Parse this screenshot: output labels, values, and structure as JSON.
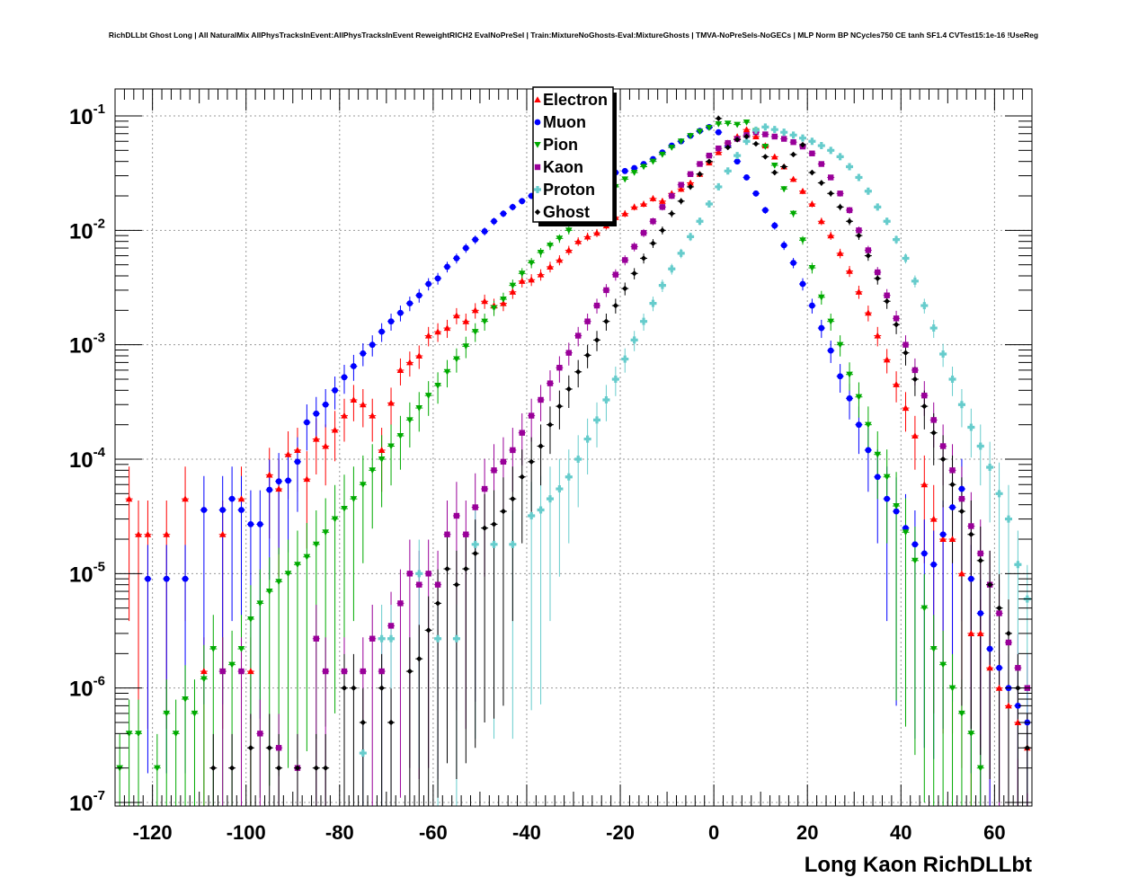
{
  "chart_data": {
    "type": "scatter",
    "title": "RichDLLbt Ghost Long | All NaturalMix AllPhysTracksInEvent:AllPhysTracksInEvent ReweightRICH2 EvalNoPreSel | Train:MixtureNoGhosts-Eval:MixtureGhosts | TMVA-NoPreSels-NoGECs | MLP Norm BP NCycles750 CE tanh SF1.4 CVTest15:1e-16 !UseReg",
    "xlabel": "Long Kaon RichDLLbt",
    "ylabel": "",
    "xlim": [
      -128,
      68
    ],
    "ylim": [
      1e-07,
      0.18
    ],
    "yscale": "log",
    "grid": true,
    "legend_position": "top-center",
    "x_ticks": [
      "-120",
      "-100",
      "-80",
      "-60",
      "-40",
      "-20",
      "0",
      "20",
      "40",
      "60"
    ],
    "y_ticks": [
      {
        "base": "10",
        "exp": "-7"
      },
      {
        "base": "10",
        "exp": "-6"
      },
      {
        "base": "10",
        "exp": "-5"
      },
      {
        "base": "10",
        "exp": "-4"
      },
      {
        "base": "10",
        "exp": "-3"
      },
      {
        "base": "10",
        "exp": "-2"
      },
      {
        "base": "10",
        "exp": "-1"
      }
    ],
    "series": [
      {
        "name": "Electron",
        "color": "#ff0000",
        "marker": "triangle-up",
        "x": [
          -125,
          -123,
          -121,
          -117,
          -113,
          -109,
          -105,
          -101,
          -99,
          -95,
          -93,
          -91,
          -89,
          -87,
          -85,
          -83,
          -81,
          -79,
          -77,
          -75,
          -73,
          -71,
          -69,
          -67,
          -65,
          -63,
          -61,
          -59,
          -57,
          -55,
          -53,
          -51,
          -49,
          -47,
          -45,
          -43,
          -41,
          -39,
          -37,
          -35,
          -33,
          -31,
          -29,
          -27,
          -25,
          -23,
          -21,
          -19,
          -17,
          -15,
          -13,
          -11,
          -9,
          -7,
          -5,
          -3,
          -1,
          1,
          3,
          5,
          7,
          9,
          11,
          13,
          15,
          17,
          19,
          21,
          23,
          25,
          27,
          29,
          31,
          33,
          35,
          37,
          39,
          41,
          43,
          45,
          47,
          49,
          51,
          53,
          55,
          57,
          59,
          61,
          63,
          65,
          67
        ],
        "y": [
          4.5e-05,
          2.2e-05,
          2.2e-05,
          2.2e-05,
          4.5e-05,
          1.4e-06,
          2.2e-05,
          4.5e-05,
          1.4e-06,
          7.3e-05,
          5.5e-05,
          0.00011,
          0.00012,
          6.7e-05,
          0.00015,
          0.00013,
          0.00018,
          0.00024,
          0.00033,
          0.0003,
          0.00024,
          0.00012,
          0.00031,
          0.0006,
          0.0007,
          0.0008,
          0.0012,
          0.0013,
          0.0014,
          0.0018,
          0.0016,
          0.002,
          0.0024,
          0.0022,
          0.0023,
          0.0029,
          0.0036,
          0.0037,
          0.0041,
          0.0048,
          0.0055,
          0.0067,
          0.008,
          0.0088,
          0.0095,
          0.011,
          0.013,
          0.014,
          0.016,
          0.017,
          0.019,
          0.018,
          0.021,
          0.023,
          0.026,
          0.031,
          0.039,
          0.048,
          0.058,
          0.066,
          0.076,
          0.066,
          0.055,
          0.044,
          0.036,
          0.028,
          0.022,
          0.017,
          0.012,
          0.009,
          0.0063,
          0.0044,
          0.0029,
          0.0019,
          0.0012,
          0.00074,
          0.00045,
          0.00028,
          0.00016,
          6e-05,
          3e-05,
          2e-05,
          2e-05,
          1e-05,
          3e-06,
          3e-06,
          1.5e-06,
          1e-06,
          7e-07,
          5e-07,
          3e-07
        ]
      },
      {
        "name": "Muon",
        "color": "#0000ff",
        "marker": "circle",
        "x": [
          -121,
          -117,
          -113,
          -109,
          -105,
          -103,
          -101,
          -99,
          -97,
          -95,
          -93,
          -91,
          -89,
          -87,
          -85,
          -83,
          -81,
          -79,
          -77,
          -75,
          -73,
          -71,
          -69,
          -67,
          -65,
          -63,
          -61,
          -59,
          -57,
          -55,
          -53,
          -51,
          -49,
          -47,
          -45,
          -43,
          -41,
          -39,
          -37,
          -35,
          -33,
          -31,
          -29,
          -27,
          -25,
          -23,
          -21,
          -19,
          -17,
          -15,
          -13,
          -11,
          -9,
          -7,
          -5,
          -3,
          -1,
          1,
          3,
          5,
          7,
          9,
          11,
          13,
          15,
          17,
          19,
          21,
          23,
          25,
          27,
          29,
          31,
          33,
          35,
          37,
          39,
          41,
          43,
          45,
          47,
          49,
          51,
          53,
          55,
          57,
          59,
          61,
          63,
          65,
          67
        ],
        "y": [
          9e-06,
          9e-06,
          9e-06,
          3.6e-05,
          3.6e-05,
          4.5e-05,
          3.6e-05,
          2.7e-05,
          2.7e-05,
          5.4e-05,
          6.4e-05,
          6.5e-05,
          9.5e-05,
          0.00021,
          0.00025,
          0.0003,
          0.0004,
          0.00052,
          0.00065,
          0.00084,
          0.001,
          0.0013,
          0.0016,
          0.0019,
          0.0023,
          0.0027,
          0.0034,
          0.0038,
          0.0048,
          0.0057,
          0.007,
          0.0083,
          0.0098,
          0.012,
          0.014,
          0.016,
          0.018,
          0.02,
          0.022,
          0.024,
          0.026,
          0.027,
          0.028,
          0.029,
          0.03,
          0.031,
          0.032,
          0.033,
          0.035,
          0.038,
          0.042,
          0.048,
          0.055,
          0.06,
          0.067,
          0.074,
          0.08,
          0.072,
          0.055,
          0.04,
          0.029,
          0.021,
          0.015,
          0.011,
          0.0074,
          0.0052,
          0.0034,
          0.0022,
          0.0014,
          0.00089,
          0.00053,
          0.00034,
          0.0002,
          0.00012,
          7e-05,
          4.5e-05,
          3.5e-05,
          2.5e-05,
          1.8e-05,
          1.5e-05,
          1.2e-05,
          2.2e-05,
          3.8e-05,
          5.5e-05,
          9e-06,
          4.5e-06,
          2.2e-06,
          1.5e-06,
          1e-06,
          7e-07,
          5e-07
        ]
      },
      {
        "name": "Pion",
        "color": "#00aa00",
        "marker": "triangle-down",
        "x": [
          -127,
          -125,
          -123,
          -119,
          -117,
          -115,
          -113,
          -111,
          -109,
          -107,
          -105,
          -103,
          -101,
          -99,
          -97,
          -95,
          -93,
          -91,
          -89,
          -87,
          -85,
          -83,
          -81,
          -79,
          -77,
          -75,
          -73,
          -71,
          -69,
          -67,
          -65,
          -63,
          -61,
          -59,
          -57,
          -55,
          -53,
          -51,
          -49,
          -47,
          -45,
          -43,
          -41,
          -39,
          -37,
          -35,
          -33,
          -31,
          -29,
          -27,
          -25,
          -23,
          -21,
          -19,
          -17,
          -15,
          -13,
          -11,
          -9,
          -7,
          -5,
          -3,
          -1,
          1,
          3,
          5,
          7,
          9,
          11,
          13,
          15,
          17,
          19,
          21,
          23,
          25,
          27,
          29,
          31,
          33,
          35,
          37,
          39,
          41,
          43,
          45,
          47,
          49,
          51,
          53,
          55,
          57
        ],
        "y": [
          2e-07,
          4e-07,
          4e-07,
          2e-07,
          6e-07,
          4e-07,
          8e-07,
          6e-07,
          1.2e-06,
          2.2e-06,
          1.4e-06,
          1.6e-06,
          2.2e-06,
          4e-06,
          5.5e-06,
          7e-06,
          8.5e-06,
          1e-05,
          1.2e-05,
          1.4e-05,
          1.8e-05,
          2.3e-05,
          3e-05,
          3.7e-05,
          4.5e-05,
          6e-05,
          8e-05,
          0.0001,
          0.00013,
          0.00016,
          0.00022,
          0.00028,
          0.00036,
          0.00044,
          0.00058,
          0.00075,
          0.00097,
          0.0013,
          0.0016,
          0.0021,
          0.0025,
          0.0033,
          0.0042,
          0.0052,
          0.0064,
          0.0074,
          0.0085,
          0.01,
          0.012,
          0.014,
          0.017,
          0.02,
          0.024,
          0.028,
          0.032,
          0.036,
          0.04,
          0.046,
          0.053,
          0.06,
          0.067,
          0.073,
          0.079,
          0.085,
          0.086,
          0.084,
          0.088,
          0.074,
          0.054,
          0.037,
          0.023,
          0.014,
          0.0082,
          0.0047,
          0.0026,
          0.0016,
          0.001,
          0.00055,
          0.00035,
          0.0002,
          0.00011,
          7e-05,
          3.9e-05,
          2.3e-05,
          1.3e-05,
          5e-06,
          2.2e-06,
          1.6e-06,
          1e-06,
          6e-07,
          4e-07,
          2e-07
        ]
      },
      {
        "name": "Kaon",
        "color": "#990099",
        "marker": "square",
        "x": [
          -105,
          -101,
          -97,
          -93,
          -89,
          -85,
          -83,
          -79,
          -75,
          -73,
          -71,
          -69,
          -67,
          -65,
          -63,
          -61,
          -59,
          -57,
          -55,
          -53,
          -51,
          -49,
          -47,
          -45,
          -43,
          -41,
          -39,
          -37,
          -35,
          -33,
          -31,
          -29,
          -27,
          -25,
          -23,
          -21,
          -19,
          -17,
          -15,
          -13,
          -11,
          -9,
          -7,
          -5,
          -3,
          -1,
          1,
          3,
          5,
          7,
          9,
          11,
          13,
          15,
          17,
          19,
          21,
          23,
          25,
          27,
          29,
          31,
          33,
          35,
          37,
          39,
          41,
          43,
          45,
          47,
          49,
          51,
          53,
          55,
          57,
          59,
          61,
          63,
          65,
          67
        ],
        "y": [
          1.4e-06,
          1.4e-06,
          4e-07,
          3e-07,
          2e-07,
          2.7e-06,
          1.4e-06,
          1.4e-06,
          1.4e-06,
          2.7e-06,
          1.4e-06,
          3.5e-06,
          5.5e-06,
          1e-05,
          8e-06,
          1e-05,
          8e-06,
          2.2e-05,
          3.2e-05,
          2.2e-05,
          3.8e-05,
          5.5e-05,
          8e-05,
          9.5e-05,
          0.00012,
          0.00017,
          0.00024,
          0.00033,
          0.00046,
          0.00063,
          0.00085,
          0.0012,
          0.0016,
          0.0022,
          0.003,
          0.0041,
          0.0055,
          0.0072,
          0.0095,
          0.012,
          0.016,
          0.02,
          0.025,
          0.031,
          0.038,
          0.045,
          0.052,
          0.058,
          0.063,
          0.068,
          0.072,
          0.069,
          0.066,
          0.063,
          0.059,
          0.054,
          0.047,
          0.038,
          0.029,
          0.021,
          0.015,
          0.01,
          0.0067,
          0.0043,
          0.0027,
          0.0017,
          0.001,
          0.0006,
          0.00036,
          0.00022,
          0.00013,
          8e-05,
          4.5e-05,
          2.6e-05,
          1.5e-05,
          8e-06,
          4.5e-06,
          2.5e-06,
          1.5e-06,
          1e-06
        ]
      },
      {
        "name": "Proton",
        "color": "#66cccc",
        "marker": "cross",
        "x": [
          -75,
          -71,
          -69,
          -63,
          -59,
          -55,
          -51,
          -47,
          -43,
          -39,
          -37,
          -35,
          -33,
          -31,
          -29,
          -27,
          -25,
          -23,
          -21,
          -19,
          -17,
          -15,
          -13,
          -11,
          -9,
          -7,
          -5,
          -3,
          -1,
          1,
          3,
          5,
          7,
          9,
          11,
          13,
          15,
          17,
          19,
          21,
          23,
          25,
          27,
          29,
          31,
          33,
          35,
          37,
          39,
          41,
          43,
          45,
          47,
          49,
          51,
          53,
          55,
          57,
          59,
          61,
          63,
          65,
          67
        ],
        "y": [
          2.7e-07,
          2.7e-06,
          2.7e-06,
          1e-05,
          2.7e-06,
          2.7e-06,
          1.8e-05,
          1.8e-05,
          1.8e-05,
          3.2e-05,
          3.6e-05,
          4.5e-05,
          5.5e-05,
          7e-05,
          0.0001,
          0.00015,
          0.00022,
          0.00033,
          0.0005,
          0.00075,
          0.0011,
          0.0016,
          0.0023,
          0.0033,
          0.0046,
          0.0063,
          0.0088,
          0.012,
          0.017,
          0.024,
          0.033,
          0.045,
          0.06,
          0.075,
          0.08,
          0.076,
          0.072,
          0.068,
          0.064,
          0.06,
          0.055,
          0.05,
          0.044,
          0.036,
          0.029,
          0.022,
          0.016,
          0.012,
          0.0083,
          0.0057,
          0.0036,
          0.0022,
          0.0014,
          0.00083,
          0.0005,
          0.0003,
          0.00019,
          0.00013,
          8.5e-05,
          5e-05,
          3e-05,
          1.2e-05,
          6e-06
        ]
      },
      {
        "name": "Ghost",
        "color": "#000000",
        "marker": "star",
        "x": [
          -107,
          -103,
          -99,
          -95,
          -93,
          -89,
          -85,
          -83,
          -79,
          -77,
          -75,
          -71,
          -69,
          -65,
          -63,
          -61,
          -59,
          -57,
          -55,
          -53,
          -51,
          -49,
          -47,
          -45,
          -43,
          -41,
          -39,
          -37,
          -35,
          -33,
          -31,
          -29,
          -27,
          -25,
          -23,
          -21,
          -19,
          -17,
          -15,
          -13,
          -11,
          -9,
          -7,
          -5,
          -3,
          -1,
          1,
          3,
          5,
          7,
          9,
          11,
          13,
          15,
          17,
          19,
          21,
          23,
          25,
          27,
          29,
          31,
          33,
          35,
          37,
          39,
          41,
          43,
          45,
          47,
          49,
          51,
          53,
          55,
          57,
          59,
          61,
          63,
          65,
          67
        ],
        "y": [
          2e-07,
          2e-07,
          3e-07,
          3e-07,
          2e-07,
          2e-07,
          2e-07,
          2e-07,
          1e-06,
          1e-06,
          5e-07,
          1e-06,
          5e-07,
          1.4e-06,
          1.8e-06,
          3.2e-06,
          5.5e-06,
          1.1e-05,
          8e-06,
          1.1e-05,
          1.5e-05,
          2.5e-05,
          2.7e-05,
          3.5e-05,
          4.5e-05,
          7e-05,
          9.5e-05,
          0.00013,
          0.0002,
          0.00029,
          0.00041,
          0.00058,
          0.00081,
          0.0011,
          0.0016,
          0.0022,
          0.0031,
          0.0042,
          0.0057,
          0.0077,
          0.01,
          0.014,
          0.018,
          0.024,
          0.031,
          0.04,
          0.095,
          0.053,
          0.062,
          0.066,
          0.057,
          0.044,
          0.032,
          0.036,
          0.046,
          0.056,
          0.032,
          0.026,
          0.021,
          0.016,
          0.012,
          0.009,
          0.006,
          0.0038,
          0.0024,
          0.0015,
          0.00085,
          0.0005,
          0.00029,
          0.00017,
          0.0001,
          6e-05,
          3.5e-05,
          2.2e-05,
          1.3e-05,
          8e-06,
          5e-06,
          3e-06,
          1e-06,
          3e-07
        ]
      }
    ]
  }
}
